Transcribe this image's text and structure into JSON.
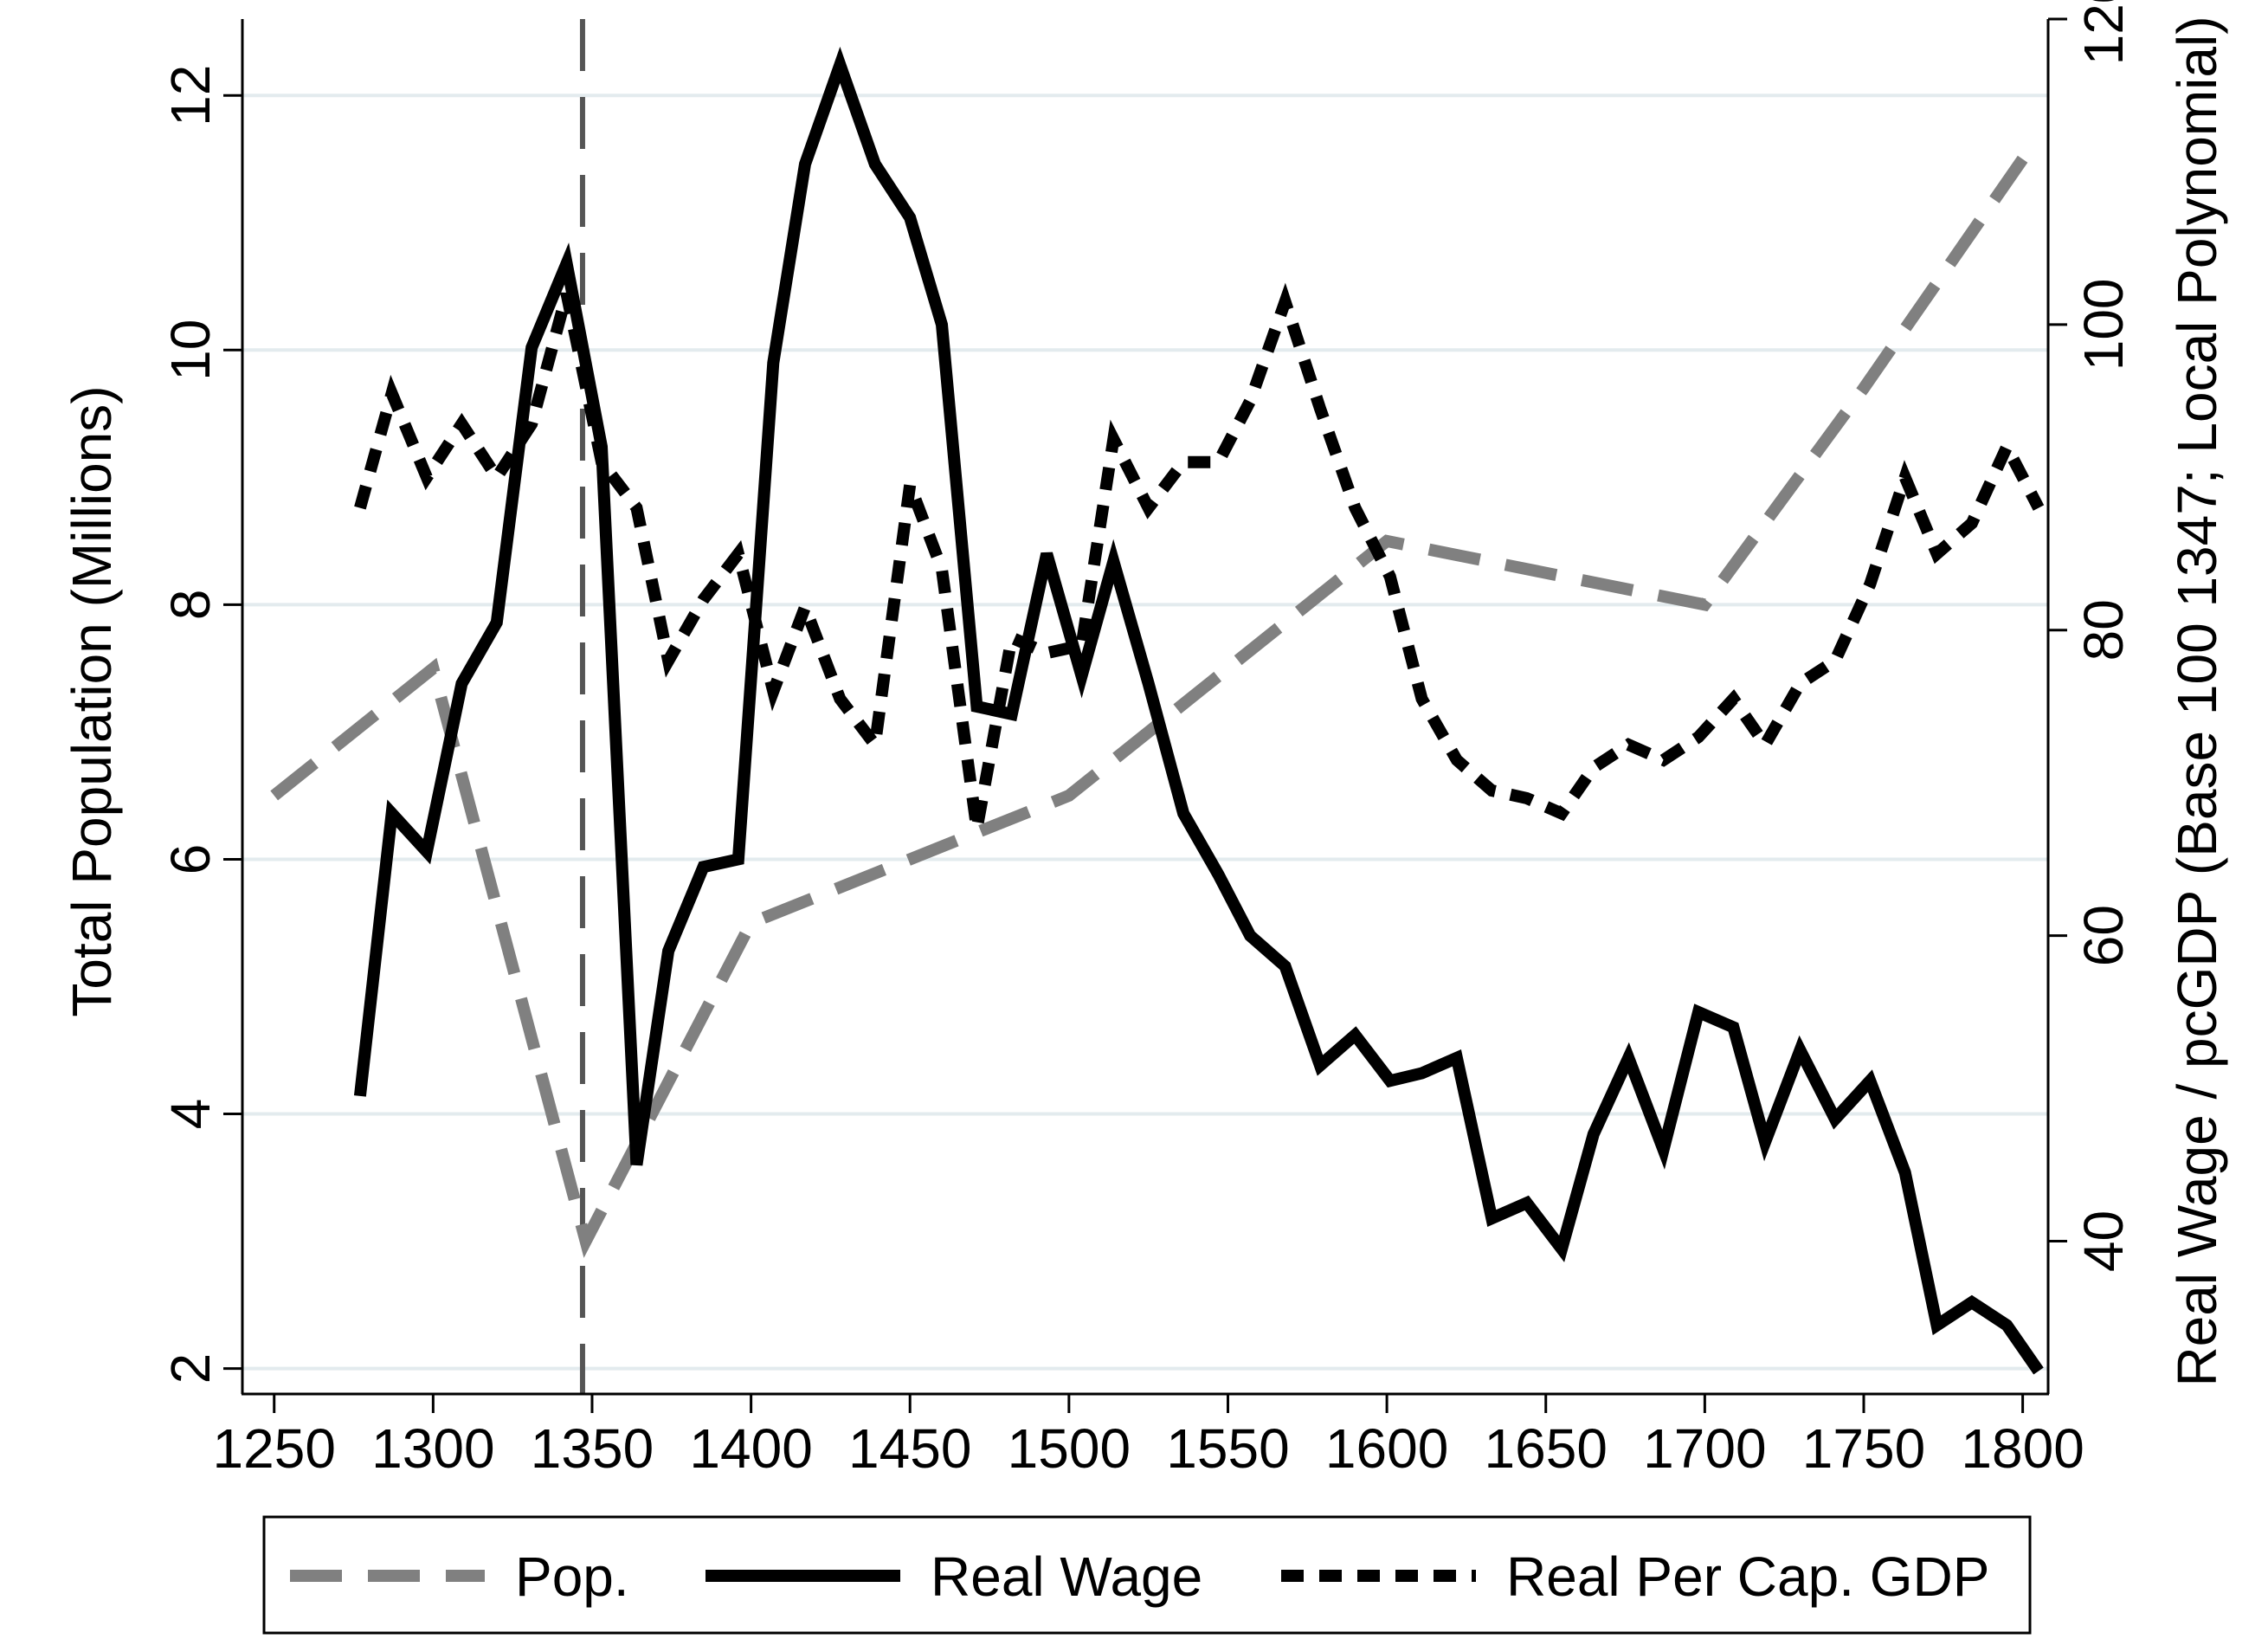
{
  "chart_data": {
    "type": "line",
    "title": "",
    "xlabel": "",
    "ylabel_left": "Total Population (Millions)",
    "ylabel_right": "Real Wage / pcGDP (Base 100 1347; Local Polynomial)",
    "xlim": [
      1240,
      1808
    ],
    "ylim_left": [
      1.8,
      12.6
    ],
    "ylim_right": [
      30,
      120
    ],
    "x_ticks": [
      1250,
      1300,
      1350,
      1400,
      1450,
      1500,
      1550,
      1600,
      1650,
      1700,
      1750,
      1800
    ],
    "y_ticks_left": [
      2,
      4,
      6,
      8,
      10,
      12
    ],
    "y_ticks_right": [
      40,
      60,
      80,
      100,
      120
    ],
    "grid": true,
    "legend_position": "bottom",
    "reference_line": {
      "x": 1347,
      "style": "dashed"
    },
    "series": [
      {
        "name": "Pop.",
        "axis": "left",
        "color": "#808080",
        "style": "long-dash",
        "x": [
          1250,
          1300,
          1348,
          1400,
          1500,
          1600,
          1700,
          1750,
          1800
        ],
        "y": [
          6.5,
          7.5,
          3.0,
          5.5,
          6.5,
          8.5,
          8.0,
          9.7,
          11.5
        ]
      },
      {
        "name": "Real Wage",
        "axis": "right",
        "color": "#000000",
        "style": "solid",
        "x": [
          1277,
          1287,
          1298,
          1309,
          1320,
          1331,
          1342,
          1353,
          1364,
          1374,
          1385,
          1396,
          1407,
          1417,
          1428,
          1439,
          1450,
          1460,
          1471,
          1482,
          1493,
          1504,
          1514,
          1525,
          1536,
          1547,
          1557,
          1568,
          1579,
          1590,
          1601,
          1611,
          1622,
          1633,
          1644,
          1655,
          1665,
          1676,
          1687,
          1698,
          1709,
          1719,
          1730,
          1741,
          1752,
          1763,
          1773,
          1784,
          1795,
          1805
        ],
        "y": [
          49.5,
          68,
          65.5,
          76.5,
          80.5,
          98.5,
          104,
          92,
          45,
          59,
          64.5,
          65,
          97.5,
          110.5,
          117,
          110.5,
          107,
          100,
          75,
          74.5,
          85,
          77,
          84.5,
          76.5,
          68,
          64,
          60,
          58,
          51.5,
          53.5,
          50.5,
          51,
          52,
          41.5,
          42.5,
          39.5,
          47,
          52,
          46,
          55,
          54,
          46.5,
          52.5,
          48,
          50.5,
          44.5,
          34.5,
          36,
          34.5,
          31.5
        ]
      },
      {
        "name": "Real Per Cap. GDP",
        "axis": "right",
        "color": "#000000",
        "style": "short-dash",
        "x": [
          1277,
          1287,
          1298,
          1309,
          1320,
          1331,
          1342,
          1353,
          1364,
          1374,
          1385,
          1396,
          1407,
          1417,
          1428,
          1439,
          1450,
          1460,
          1471,
          1482,
          1493,
          1504,
          1514,
          1525,
          1536,
          1547,
          1557,
          1568,
          1579,
          1590,
          1601,
          1611,
          1622,
          1633,
          1644,
          1655,
          1665,
          1676,
          1687,
          1698,
          1709,
          1719,
          1730,
          1741,
          1752,
          1763,
          1773,
          1784,
          1795,
          1805
        ],
        "y": [
          88,
          95.5,
          90,
          93.5,
          90,
          93.5,
          102,
          91,
          88,
          78,
          82,
          85,
          76,
          81.5,
          75.5,
          72.5,
          89.5,
          84,
          67,
          79.5,
          78.5,
          79,
          92.5,
          88,
          91,
          91,
          95,
          101.5,
          94.5,
          88,
          83.5,
          75.5,
          71.5,
          69.5,
          69,
          68,
          71,
          72.5,
          71.5,
          73,
          75.5,
          72.5,
          76.5,
          78,
          83,
          90,
          85,
          87,
          92,
          88
        ]
      }
    ]
  }
}
